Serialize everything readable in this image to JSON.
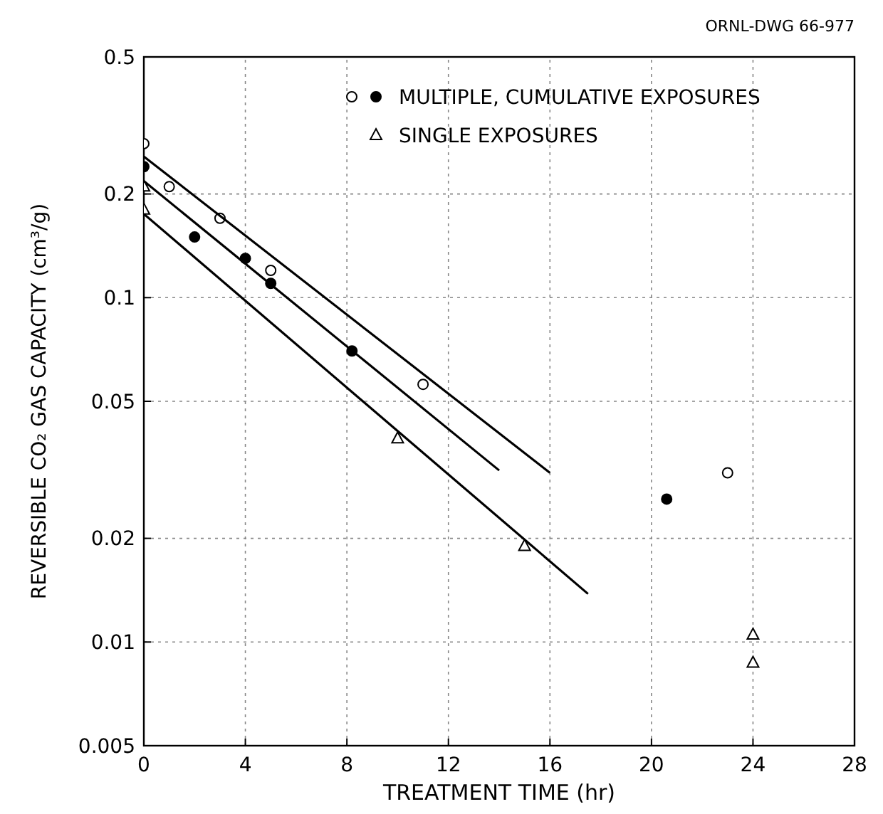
{
  "chart_data": {
    "type": "scatter",
    "xlabel": "TREATMENT TIME (hr)",
    "ylabel": "REVERSIBLE CO₂ GAS CAPACITY (cm³/g)",
    "annotations": [
      "ORNL-DWG 66-977"
    ],
    "log": "y",
    "grid": true,
    "legend": "top right",
    "xlim": [
      0,
      28
    ],
    "xticks": [
      0,
      4,
      8,
      12,
      16,
      20,
      24,
      28
    ],
    "ylim": [
      0.005,
      0.5
    ],
    "yticks": [
      0.005,
      0.01,
      0.02,
      0.05,
      0.1,
      0.2,
      0.5
    ],
    "series": [
      {
        "name": "MULTIPLE, CUMULATIVE EXPOSURES",
        "marker": "circle",
        "color": "#000000",
        "x": [
          0,
          2,
          4,
          5,
          8.2,
          20.6
        ],
        "values": [
          0.24,
          0.15,
          0.13,
          0.11,
          0.07,
          0.026
        ]
      },
      {
        "marker": "circle",
        "color": "#ffffff",
        "x": [
          0,
          1,
          3,
          5,
          11,
          23
        ],
        "values": [
          0.28,
          0.21,
          0.17,
          0.12,
          0.056,
          0.031
        ]
      },
      {
        "name": "SINGLE EXPOSURES",
        "marker": "triangle",
        "color": "#ffffff",
        "x": [
          0,
          0,
          10,
          15,
          24,
          24
        ],
        "values": [
          0.21,
          0.18,
          0.039,
          0.019,
          0.0105,
          0.0087
        ]
      },
      {
        "type": "line",
        "marker": "none",
        "color": "#000000",
        "x": [
          0,
          16
        ],
        "values": [
          0.257,
          0.031
        ]
      },
      {
        "type": "line",
        "marker": "none",
        "color": "#000000",
        "x": [
          0,
          14
        ],
        "values": [
          0.218,
          0.0315
        ]
      },
      {
        "type": "line",
        "marker": "none",
        "color": "#000000",
        "x": [
          0,
          17.5
        ],
        "values": [
          0.175,
          0.0138
        ]
      }
    ]
  }
}
